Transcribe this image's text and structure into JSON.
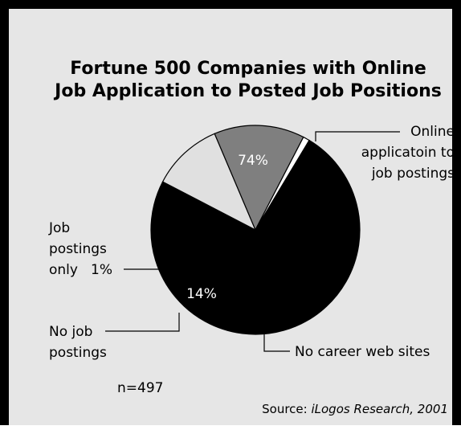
{
  "chart_data": {
    "type": "pie",
    "title_lines": [
      "Fortune 500 Companies with Online",
      "Job Application to Posted Job Positions"
    ],
    "slices": [
      {
        "label_lines": [
          "Online",
          "applicatoin to",
          "job postings"
        ],
        "value": 74,
        "pct_text": "74%",
        "color": "#000000",
        "pct_color": "#ffffff"
      },
      {
        "label_lines": [
          "No career web sites"
        ],
        "value": 11,
        "pct_text": "11%",
        "color": "#e0e0e0",
        "pct_color": "#000000"
      },
      {
        "label_lines": [
          "No job",
          "postings"
        ],
        "value": 14,
        "pct_text": "14%",
        "color": "#7f7f7f",
        "pct_color": "#ffffff"
      },
      {
        "label_lines": [
          "Job",
          "postings",
          "only"
        ],
        "value": 1,
        "pct_text": "1%",
        "color": "#ffffff",
        "pct_color": "#000000"
      }
    ],
    "note": "n=497",
    "source_prefix": "Source: ",
    "source_name": "iLogos Research, 2001"
  }
}
